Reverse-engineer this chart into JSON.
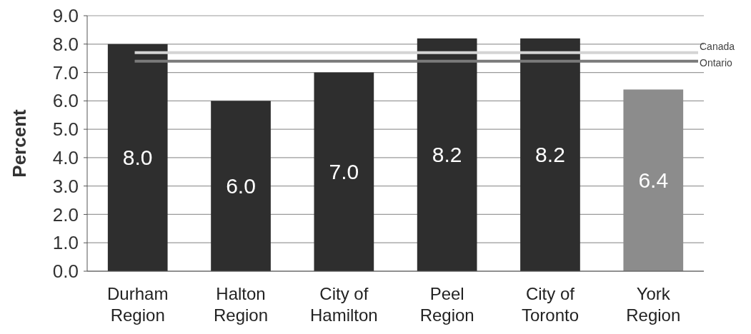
{
  "chart_data": {
    "type": "bar",
    "ylabel": "Percent",
    "categories": [
      "Durham Region",
      "Halton Region",
      "City of Hamilton",
      "Peel Region",
      "City of Toronto",
      "York Region"
    ],
    "values": [
      8.0,
      6.0,
      7.0,
      8.2,
      8.2,
      6.4
    ],
    "colors": [
      "#2e2e2e",
      "#2e2e2e",
      "#2e2e2e",
      "#2e2e2e",
      "#2e2e2e",
      "#8c8c8c"
    ],
    "ylim": [
      0,
      9
    ],
    "yticks": [
      {
        "value": 0,
        "label": "0.0"
      },
      {
        "value": 1,
        "label": "1.0"
      },
      {
        "value": 2,
        "label": "2.0"
      },
      {
        "value": 3,
        "label": "3.0"
      },
      {
        "value": 4,
        "label": "4.0"
      },
      {
        "value": 5,
        "label": "5.0"
      },
      {
        "value": 6,
        "label": "6.0"
      },
      {
        "value": 7,
        "label": "7.0"
      },
      {
        "value": 8,
        "label": "8.0"
      },
      {
        "value": 9,
        "label": "9.0"
      }
    ],
    "value_labels": [
      "8.0",
      "6.0",
      "7.0",
      "8.2",
      "8.2",
      "6.4"
    ],
    "grid": "y",
    "ref_lines": [
      {
        "axis": "y",
        "value": 7.7,
        "label": "Canada",
        "color": "#d4d4d4"
      },
      {
        "axis": "y",
        "value": 7.4,
        "label": "Ontario",
        "color": "#7a7a7a"
      }
    ]
  }
}
